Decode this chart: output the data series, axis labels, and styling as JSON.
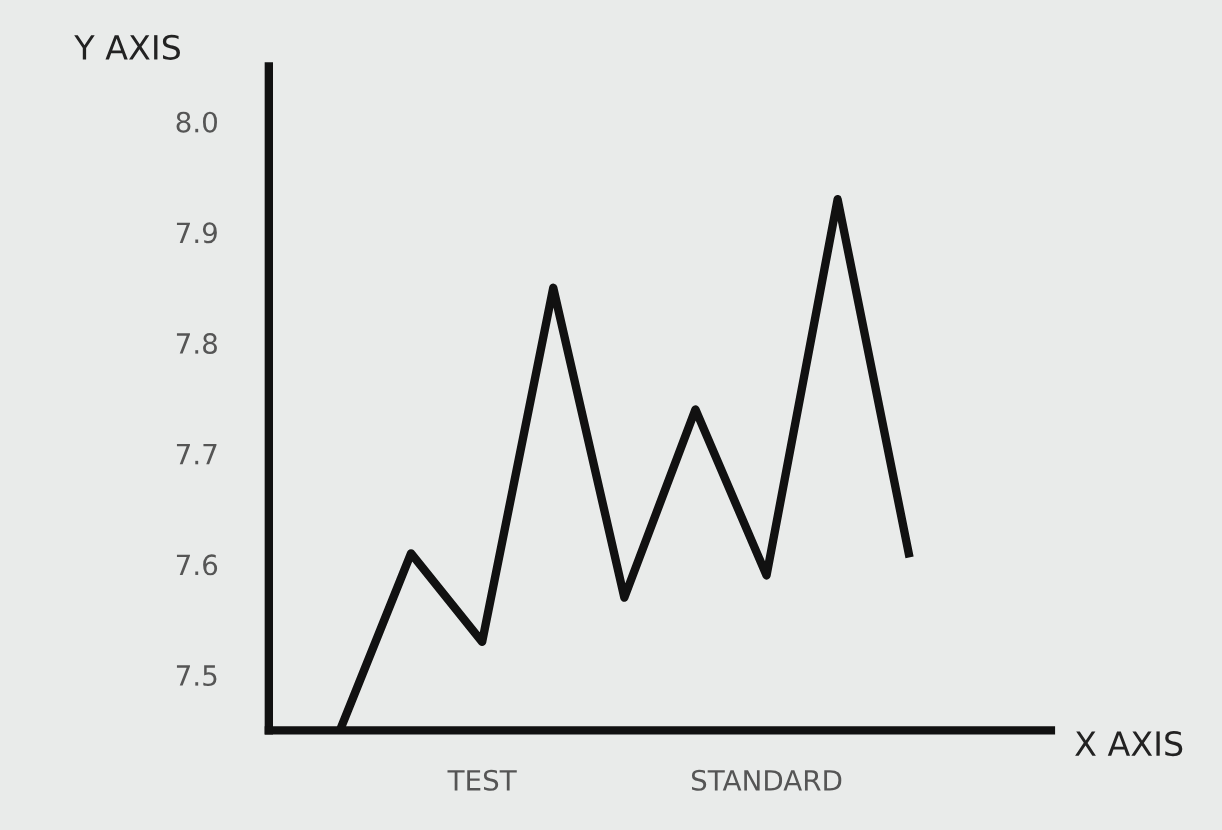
{
  "chart_data": {
    "type": "line",
    "xlabel": "X AXIS",
    "ylabel": "Y AXIS",
    "categories": [
      null,
      null,
      "TEST",
      null,
      null,
      null,
      "STANDARD",
      null,
      null
    ],
    "series": [
      {
        "color": "#111111",
        "values": [
          7.45,
          7.61,
          7.53,
          7.85,
          7.57,
          7.74,
          7.59,
          7.93,
          7.61
        ]
      }
    ],
    "ylim": [
      7.45,
      8.05
    ],
    "yticks": [
      7.5,
      7.6,
      7.7,
      7.8,
      7.9,
      {
        "value": 8.0,
        "label": "8.0"
      }
    ],
    "grid": false,
    "legend": false,
    "marker": "none",
    "line_style": "solid"
  }
}
